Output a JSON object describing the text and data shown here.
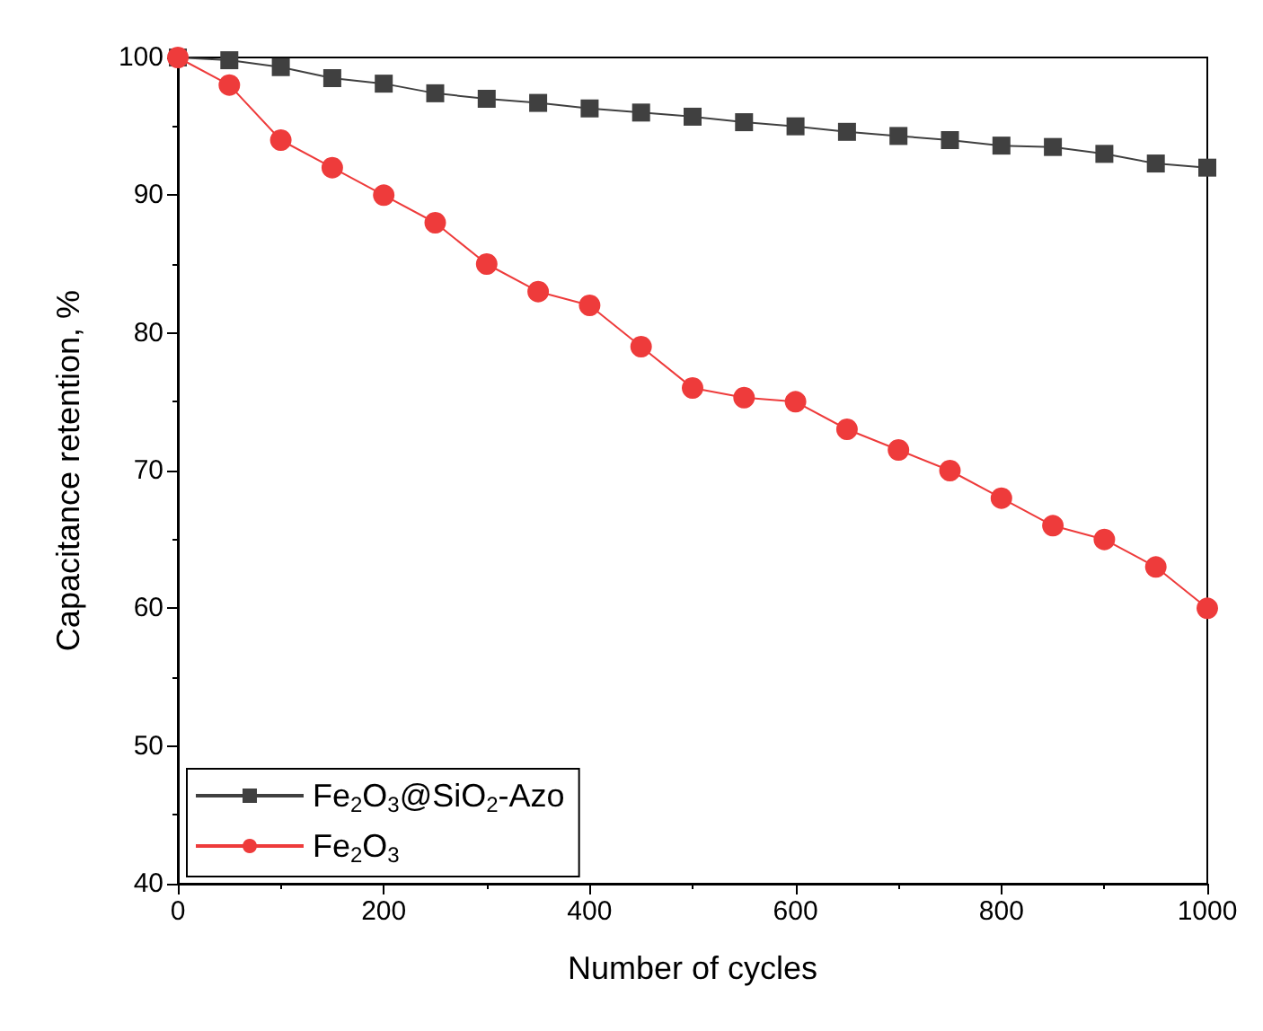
{
  "chart_data": {
    "type": "line",
    "xlabel": "Number of cycles",
    "ylabel": "Capacitance retention, %",
    "x": [
      0,
      50,
      100,
      150,
      200,
      250,
      300,
      350,
      400,
      450,
      500,
      550,
      600,
      650,
      700,
      750,
      800,
      850,
      900,
      950,
      1000
    ],
    "series": [
      {
        "name": "Fe$_{2}$O$_{3}$@SiO$_{2}$-Azo",
        "color": "#404040",
        "marker": "square",
        "values": [
          100,
          99.8,
          99.3,
          98.5,
          98.1,
          97.4,
          97,
          96.7,
          96.3,
          96,
          95.7,
          95.3,
          95,
          94.6,
          94.3,
          94,
          93.6,
          93.5,
          93,
          92.3,
          92
        ]
      },
      {
        "name": "Fe$_{2}$O$_{3}$",
        "color": "#ee3b3b",
        "marker": "circle",
        "values": [
          100,
          98,
          94,
          92,
          90,
          88,
          85,
          83,
          82,
          79,
          76,
          75.3,
          75,
          73,
          71.5,
          70,
          68,
          66,
          65,
          63,
          60
        ]
      }
    ],
    "xlim": [
      0,
      1000
    ],
    "xticks": [
      0,
      200,
      400,
      600,
      800,
      1000
    ],
    "ylim": [
      40,
      100
    ],
    "yticks": [
      40,
      50,
      60,
      70,
      80,
      90,
      100
    ],
    "grid": false,
    "legend": "bottom left",
    "line_style": "solid"
  }
}
